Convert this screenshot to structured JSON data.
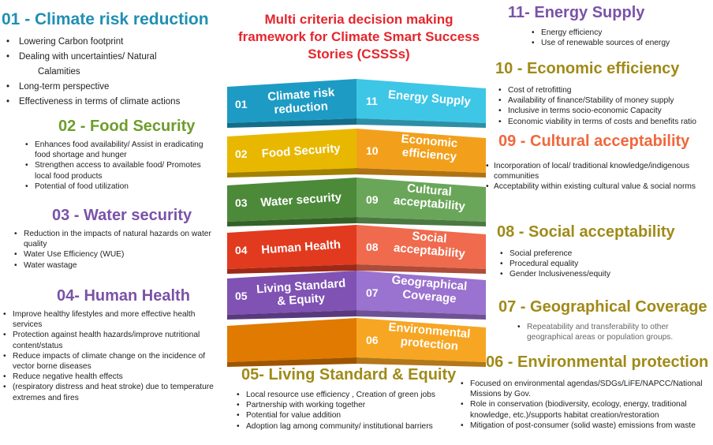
{
  "title": "Multi criteria decision making framework for Climate Smart Success Stories (CSSSs)",
  "colors": {
    "teal": "#1d9bc4",
    "light_teal": "#3ec6e6",
    "yellow": "#e8b800",
    "orange": "#f2a01c",
    "dark_green": "#4c8a3a",
    "green": "#6aa65a",
    "red": "#e23a1f",
    "salmon": "#f06a4e",
    "purple": "#7f52b4",
    "light_purple": "#9a72cf",
    "dark_orange": "#e07a00",
    "amber": "#f7a623"
  },
  "tower": [
    {
      "left_num": "01",
      "left_label": [
        "Climate risk",
        "reduction"
      ],
      "right_num": "11",
      "right_label": [
        "Energy Supply"
      ]
    },
    {
      "left_num": "02",
      "left_label": [
        "Food Security"
      ],
      "right_num": "10",
      "right_label": [
        "Economic",
        "efficiency"
      ]
    },
    {
      "left_num": "03",
      "left_label": [
        "Water security"
      ],
      "right_num": "09",
      "right_label": [
        "Cultural",
        "acceptability"
      ]
    },
    {
      "left_num": "04",
      "left_label": [
        "Human Health"
      ],
      "right_num": "08",
      "right_label": [
        "Social",
        "acceptability"
      ]
    },
    {
      "left_num": "05",
      "left_label": [
        "Living Standard",
        "& Equity"
      ],
      "right_num": "07",
      "right_label": [
        "Geographical",
        "Coverage"
      ]
    },
    {
      "left_num": "",
      "left_label": [],
      "right_num": "06",
      "right_label": [
        "Environmental",
        "protection"
      ]
    }
  ],
  "sections": {
    "s01": {
      "heading": "01 - Climate risk reduction",
      "items": [
        "Lowering Carbon footprint",
        "Dealing with uncertainties/ Natural",
        "Calamities",
        "Long-term perspective",
        "Effectiveness in terms of climate actions"
      ]
    },
    "s02": {
      "heading": "02 - Food Security",
      "items": [
        "Enhances food availability/ Assist in eradicating",
        "food shortage and hunger",
        "Strengthen access to available food/ Promotes",
        "local food products",
        "Potential of food utilization"
      ]
    },
    "s03": {
      "heading": "03 - Water security",
      "items": [
        "Reduction in the impacts of natural hazards on water",
        "quality",
        "Water Use Efficiency (WUE)",
        "Water wastage"
      ]
    },
    "s04": {
      "heading": "04- Human Health",
      "items": [
        "Improve healthy lifestyles and more effective health",
        "services",
        "Protection against health hazards/improve nutritional",
        "content/status",
        "Reduce impacts of climate change on the incidence of",
        "vector borne diseases",
        "Reduce negative health effects",
        "(respiratory distress and heat stroke) due to temperature",
        "extremes and fires"
      ]
    },
    "s05": {
      "heading": "05- Living Standard & Equity",
      "items": [
        "Local resource use efficiency , Creation of green jobs",
        "Partnership with working together",
        "Potential for value addition",
        "Adoption lag among community/ institutional barriers"
      ]
    },
    "s06": {
      "heading": "06 - Environmental protection",
      "items": [
        "Focused on environmental agendas/SDGs/LiFE/NAPCC/National",
        "Missions by Gov.",
        "Role in conservation (biodiversity, ecology, energy, traditional",
        "knowledge, etc.)/supports habitat creation/restoration",
        "Mitigation of post-consumer (solid waste) emissions from waste"
      ]
    },
    "s07": {
      "heading": "07 - Geographical Coverage",
      "items": [
        "Repeatability and transferability to other",
        "geographical areas or population groups."
      ]
    },
    "s08": {
      "heading": "08 - Social acceptability",
      "items": [
        "Social preference",
        "Procedural equality",
        "Gender Inclusiveness/equity"
      ]
    },
    "s09": {
      "heading": "09 - Cultural acceptability",
      "items": [
        "Incorporation of local/ traditional knowledge/indigenous",
        "communities",
        "Acceptability within existing cultural value & social norms"
      ]
    },
    "s10": {
      "heading": "10 - Economic efficiency",
      "items": [
        "Cost of retrofitting",
        "Availability of finance/Stability of money supply",
        "Inclusive in terms socio-economic Capacity",
        "Economic viability in terms of costs and benefits ratio"
      ]
    },
    "s11": {
      "heading": "11- Energy Supply",
      "items": [
        "Energy efficiency",
        "Use of renewable sources of energy"
      ]
    }
  }
}
